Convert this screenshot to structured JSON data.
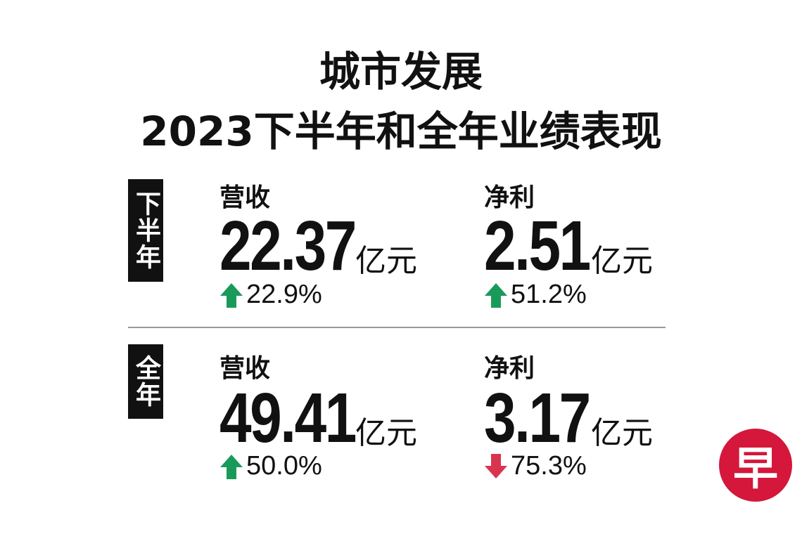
{
  "header": {
    "title_line1": "城市发展",
    "title_line2": "2023下半年和全年业绩表现"
  },
  "sections": [
    {
      "label": "下半年",
      "metrics": [
        {
          "label": "营收",
          "value": "22.37",
          "unit": "亿元",
          "change": "22.9%"
        },
        {
          "label": "净利",
          "value": "2.51",
          "unit": "亿元",
          "change": "51.2%"
        }
      ]
    },
    {
      "label": "全年",
      "metrics": [
        {
          "label": "营收",
          "value": "49.41",
          "unit": "亿元",
          "change": "50.0%"
        },
        {
          "label": "净利",
          "value": "3.17",
          "unit": "亿元",
          "change": "75.3%"
        }
      ]
    }
  ],
  "logo": "早"
}
